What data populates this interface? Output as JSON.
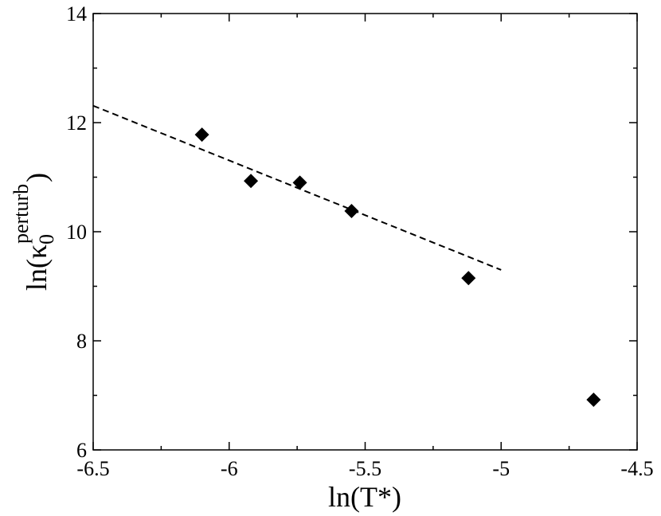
{
  "chart_data": {
    "type": "scatter",
    "title": "",
    "xlabel": "ln(T*)",
    "ylabel": {
      "prefix": "ln(κ",
      "subscript": "0",
      "superscript": "perturb",
      "suffix": ")"
    },
    "xlim": [
      -6.5,
      -4.5
    ],
    "ylim": [
      6,
      14
    ],
    "x_ticks": [
      -6.5,
      -6,
      -5.5,
      -5,
      -4.5
    ],
    "x_tick_labels": [
      "-6.5",
      "-6",
      "-5.5",
      "-5",
      "-4.5"
    ],
    "y_ticks": [
      6,
      8,
      10,
      12,
      14
    ],
    "y_tick_labels": [
      "6",
      "8",
      "10",
      "12",
      "14"
    ],
    "grid": false,
    "legend": "none",
    "series": [
      {
        "kind": "points",
        "marker": "diamond",
        "color": "#000000",
        "points": [
          {
            "x": -6.1,
            "y": 11.78
          },
          {
            "x": -5.92,
            "y": 10.93
          },
          {
            "x": -5.74,
            "y": 10.9
          },
          {
            "x": -5.55,
            "y": 10.38
          },
          {
            "x": -5.12,
            "y": 9.15
          },
          {
            "x": -4.66,
            "y": 6.92
          }
        ]
      },
      {
        "kind": "fit-line",
        "style": "dashed",
        "color": "#000000",
        "points": [
          {
            "x": -6.5,
            "y": 12.31
          },
          {
            "x": -5.0,
            "y": 9.3
          }
        ]
      }
    ]
  }
}
